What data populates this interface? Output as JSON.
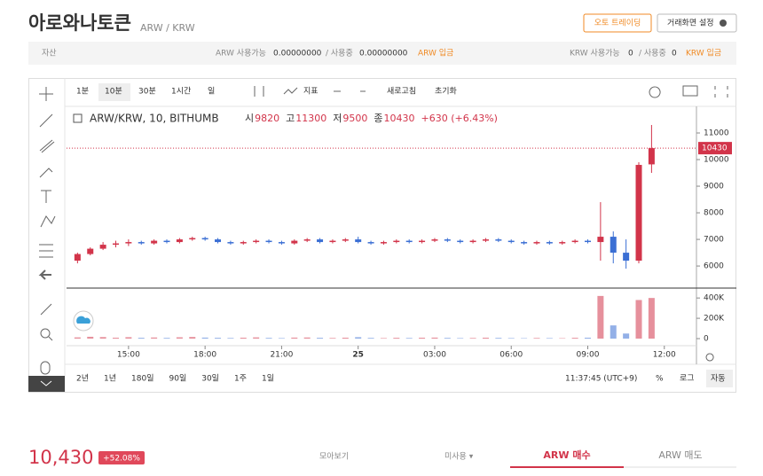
{
  "header": {
    "title": "아로와나토큰",
    "pair": "ARW / KRW",
    "auto_trading": "오토 트레이딩",
    "settings": "거래화면 설정"
  },
  "balance": {
    "label": "자산",
    "arw_available_label": "ARW 사용가능",
    "arw_available": "0.00000000",
    "arw_in_use_label": "/ 사용중",
    "arw_in_use": "0.00000000",
    "arw_deposit": "ARW 입금",
    "krw_available_label": "KRW 사용가능",
    "krw_available": "0",
    "krw_in_use_label": "/ 사용중",
    "krw_in_use": "0",
    "krw_deposit": "KRW 입금"
  },
  "toolbar": {
    "intervals": [
      "1분",
      "10분",
      "30분",
      "1시간",
      "일"
    ],
    "indicators": "지표",
    "refresh": "새로고침",
    "reset": "초기화"
  },
  "legend": {
    "symbol": "ARW/KRW, 10, BITHUMB",
    "open_label": "시",
    "high_label": "고",
    "low_label": "저",
    "close_label": "종",
    "change": "+630 (+6.43%)"
  },
  "chart": {
    "type": "candlestick",
    "up_color": "#d2344a",
    "down_color": "#3b6fd4",
    "x": [
      13,
      13.5,
      14,
      14.5,
      15,
      15.5,
      16,
      16.5,
      17,
      17.5,
      18,
      18.5,
      19,
      19.5,
      20,
      20.5,
      21,
      21.5,
      22,
      22.5,
      23,
      23.5,
      24,
      24.5,
      25,
      25.5,
      26,
      26.5,
      27,
      27.5,
      28,
      28.5,
      29,
      29.5,
      30,
      30.5,
      31,
      31.5,
      32,
      32.5,
      33,
      33.5,
      34,
      34.5,
      35,
      35.5
    ],
    "open": [
      6200,
      6450,
      6650,
      6800,
      6850,
      6900,
      6850,
      6950,
      6900,
      7000,
      7050,
      7000,
      6900,
      6850,
      6900,
      6950,
      6900,
      6850,
      6950,
      7000,
      6900,
      6950,
      7000,
      6900,
      6850,
      6900,
      6950,
      6900,
      6950,
      7000,
      6950,
      6900,
      6950,
      7000,
      6950,
      6900,
      6850,
      6900,
      6850,
      6900,
      6950,
      6900,
      7100,
      6500,
      6200,
      9820
    ],
    "high": [
      6500,
      6700,
      6900,
      6950,
      7000,
      6950,
      7000,
      7000,
      7050,
      7100,
      7100,
      7050,
      6950,
      6950,
      7000,
      7000,
      6950,
      7000,
      7050,
      7050,
      7000,
      7050,
      7100,
      6950,
      6950,
      7000,
      7000,
      7000,
      7050,
      7050,
      7000,
      7000,
      7050,
      7050,
      7000,
      6950,
      6950,
      6950,
      6950,
      7000,
      7000,
      8400,
      7300,
      7000,
      9900,
      11300
    ],
    "low": [
      6100,
      6400,
      6600,
      6700,
      6750,
      6800,
      6800,
      6850,
      6850,
      6950,
      6950,
      6850,
      6800,
      6800,
      6850,
      6850,
      6800,
      6800,
      6900,
      6850,
      6850,
      6900,
      6850,
      6800,
      6800,
      6850,
      6850,
      6850,
      6900,
      6900,
      6850,
      6850,
      6900,
      6900,
      6850,
      6800,
      6800,
      6800,
      6800,
      6850,
      6850,
      6200,
      6100,
      5900,
      6100,
      9500
    ],
    "close": [
      6450,
      6650,
      6800,
      6850,
      6900,
      6850,
      6950,
      6900,
      7000,
      7050,
      7000,
      6900,
      6850,
      6900,
      6950,
      6900,
      6850,
      6950,
      7000,
      6900,
      6950,
      7000,
      6900,
      6850,
      6900,
      6950,
      6900,
      6950,
      7000,
      6950,
      6900,
      6950,
      7000,
      6950,
      6900,
      6850,
      6900,
      6850,
      6900,
      6950,
      6900,
      7100,
      6500,
      6200,
      9800,
      10430
    ],
    "volume": [
      12000,
      18000,
      15000,
      9000,
      14000,
      8000,
      11000,
      7000,
      13000,
      16000,
      10000,
      8000,
      6000,
      9000,
      12000,
      7000,
      5000,
      10000,
      11000,
      8000,
      6000,
      9000,
      14000,
      7000,
      5000,
      8000,
      6000,
      9000,
      10000,
      7000,
      5000,
      6000,
      9000,
      7000,
      5000,
      4000,
      6000,
      5000,
      4000,
      8000,
      9000,
      420000,
      130000,
      50000,
      380000,
      400000
    ],
    "xlim": [
      12.57,
      37.26
    ],
    "xticks": [
      {
        "value": 15,
        "label": "15:00"
      },
      {
        "value": 18,
        "label": "18:00"
      },
      {
        "value": 21,
        "label": "21:00"
      },
      {
        "value": 24,
        "label": "25"
      },
      {
        "value": 27,
        "label": "03:00"
      },
      {
        "value": 30,
        "label": "06:00"
      },
      {
        "value": 33,
        "label": "09:00"
      },
      {
        "value": 36,
        "label": "12:00"
      }
    ],
    "ylim": [
      5170,
      12000
    ],
    "yticks": [
      6000,
      7000,
      8000,
      9000,
      10000,
      11000
    ],
    "vlim": [
      0,
      480000
    ],
    "vticks": [
      0,
      {
        "value": 200000,
        "label": "200K"
      },
      {
        "value": 400000,
        "label": "400K"
      }
    ]
  },
  "ranges": [
    "2년",
    "1년",
    "180일",
    "90일",
    "30일",
    "1주",
    "1일"
  ],
  "clock": "11:37:45 (UTC+9)",
  "scale_options": [
    "%",
    "로그",
    "자동"
  ],
  "footer": {
    "price": "10,430",
    "change": "+52.08%",
    "collect": "모아보기",
    "unused": "미사용 ▾",
    "buy": "ARW 매수",
    "sell": "ARW 매도"
  }
}
